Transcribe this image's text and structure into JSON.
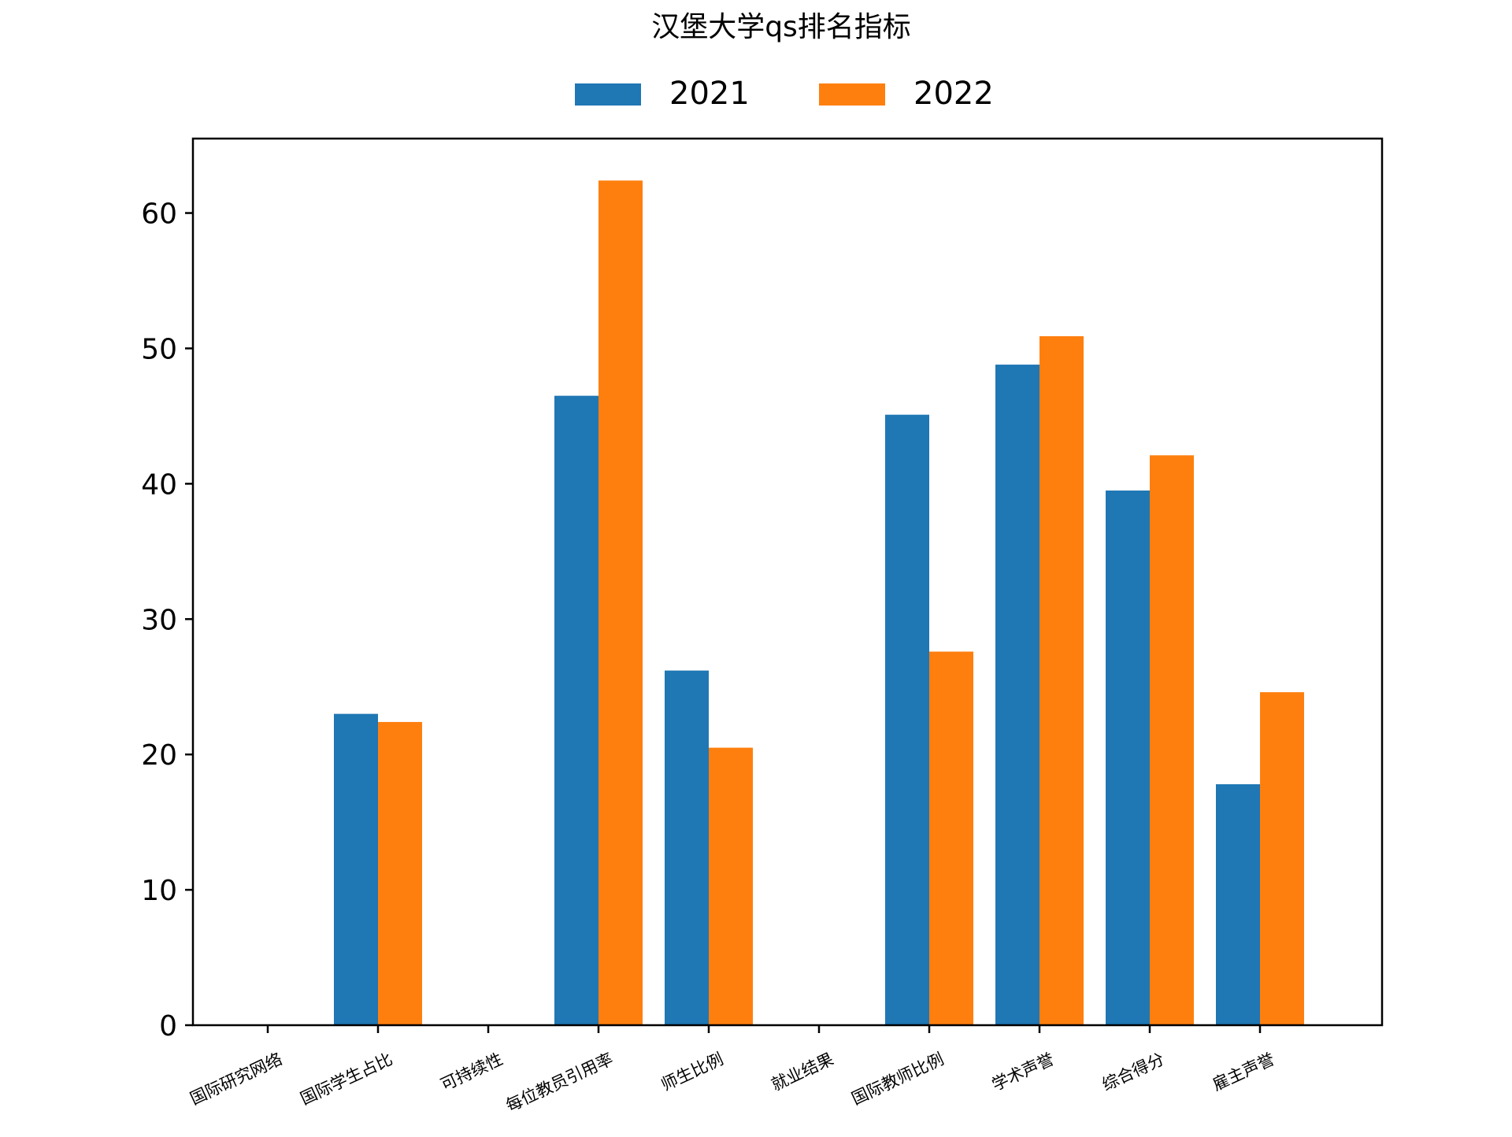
{
  "chart_data": {
    "type": "bar",
    "title": "汉堡大学qs排名指标",
    "xlabel": "",
    "ylabel": "",
    "categories": [
      "国际研究网络",
      "国际学生占比",
      "可持续性",
      "每位教员引用率",
      "师生比例",
      "就业结果",
      "国际教师比例",
      "学术声誉",
      "综合得分",
      "雇主声誉"
    ],
    "series": [
      {
        "name": "2021",
        "color": "#1f77b4",
        "values": [
          0,
          23.0,
          0,
          46.5,
          26.2,
          0,
          45.1,
          48.8,
          39.5,
          17.8
        ]
      },
      {
        "name": "2022",
        "color": "#ff7f0e",
        "values": [
          0,
          22.4,
          0,
          62.4,
          20.5,
          0,
          27.6,
          50.9,
          42.1,
          24.6
        ]
      }
    ],
    "ylim": [
      0,
      65.5
    ],
    "yticks": [
      0,
      10,
      20,
      30,
      40,
      50,
      60
    ],
    "grid": false,
    "legend_position": "top-center"
  }
}
